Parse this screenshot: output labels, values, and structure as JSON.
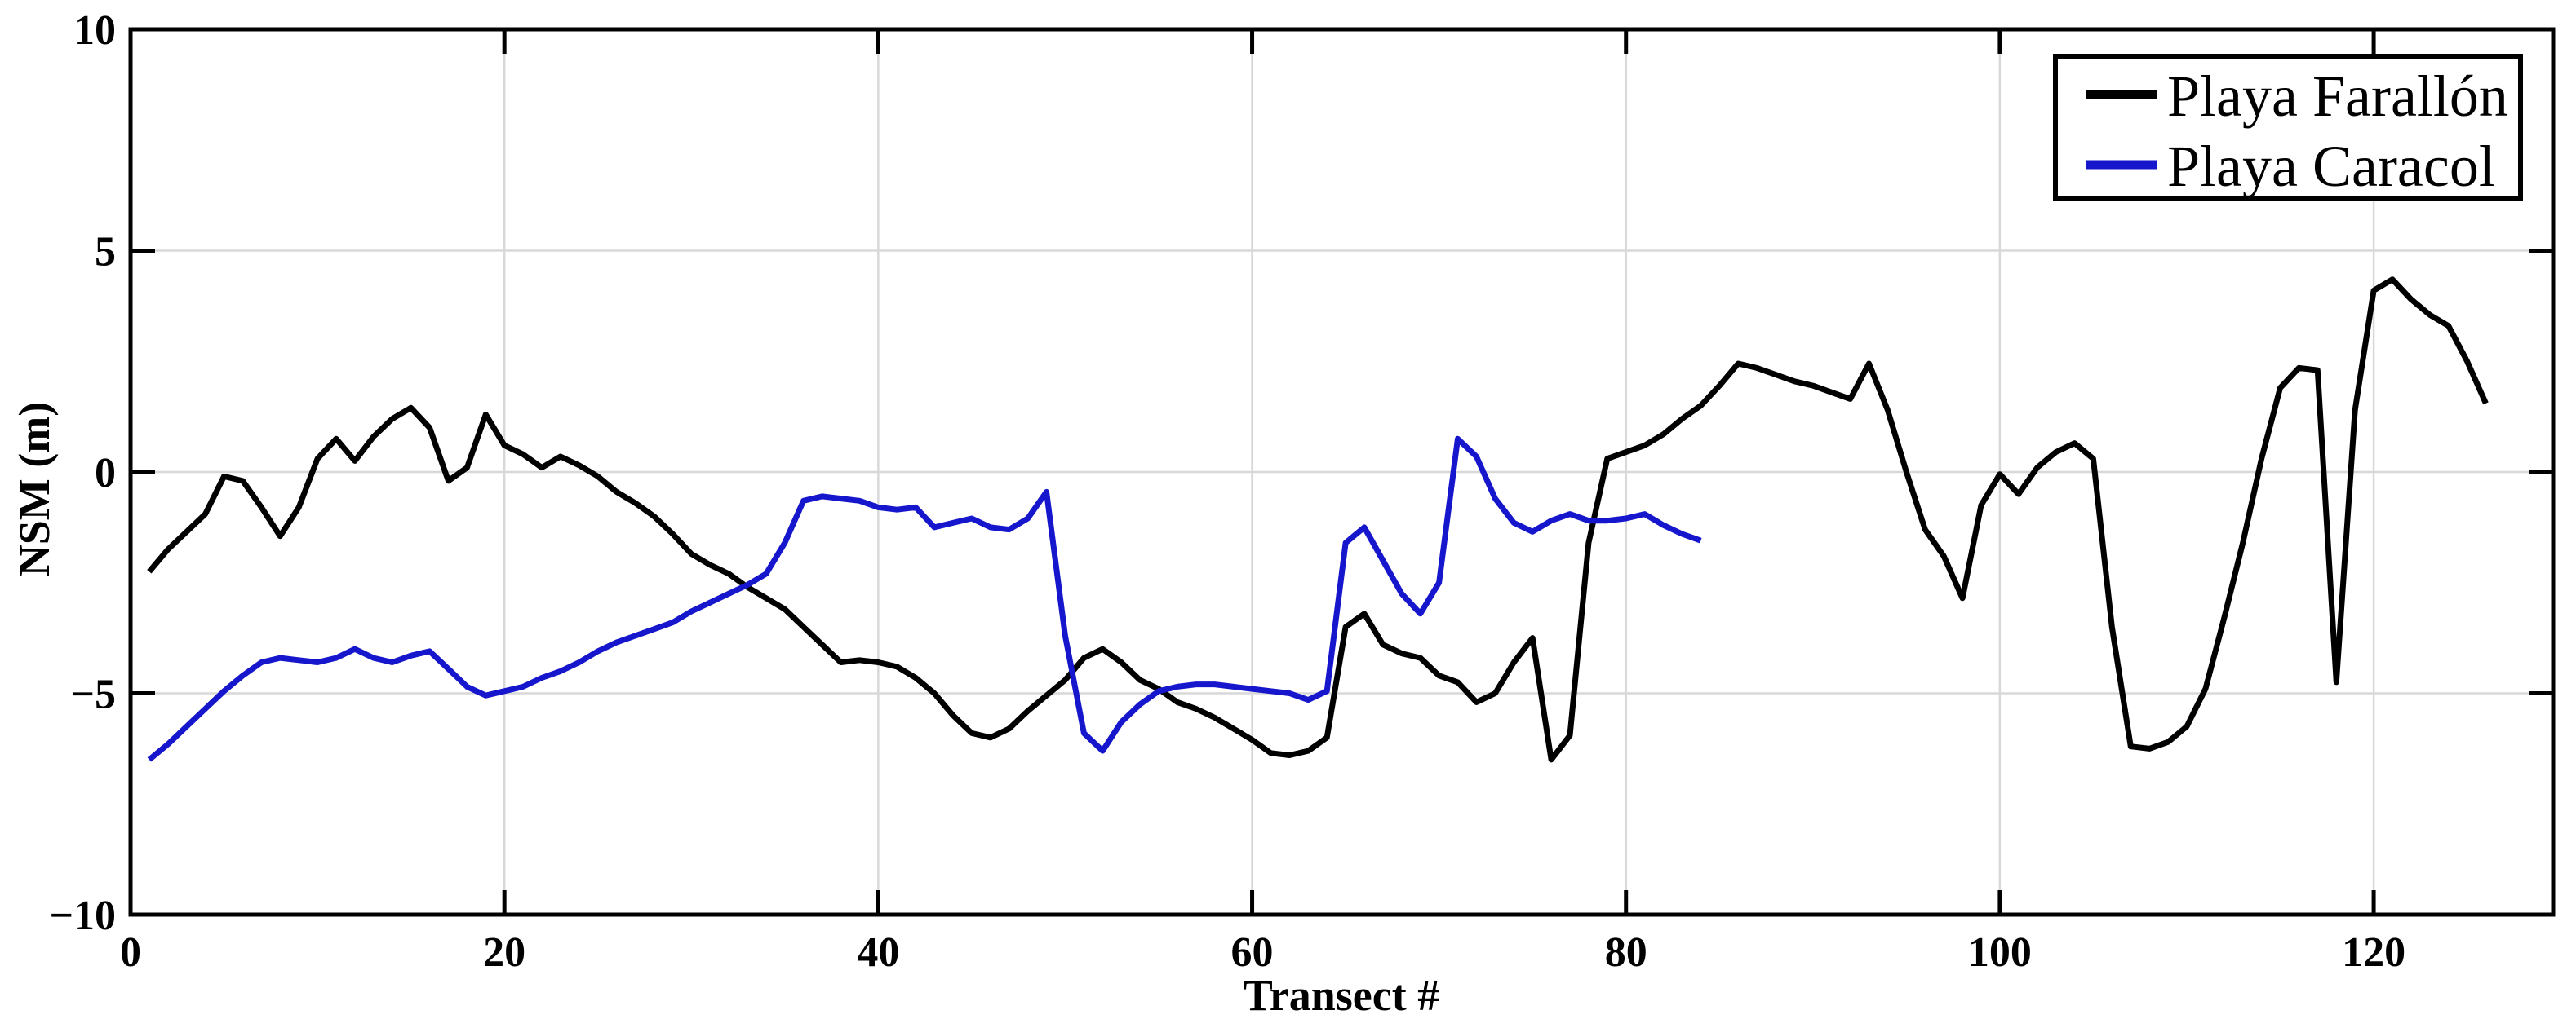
{
  "figure": {
    "kind": "matlab-style line figure",
    "background": "#ffffff",
    "axis_color": "#000000",
    "grid_color": "#d8d8d8"
  },
  "chart_data": {
    "type": "line",
    "title": "",
    "xlabel": "Transect #",
    "ylabel": "NSM (m)",
    "xlim": [
      0,
      129.6
    ],
    "ylim": [
      -10,
      10
    ],
    "x_ticks": [
      0,
      20,
      40,
      60,
      80,
      100,
      120
    ],
    "y_ticks": [
      -10,
      -5,
      0,
      5,
      10
    ],
    "x_gridlines": [
      20,
      40,
      60,
      80,
      100,
      120
    ],
    "y_gridlines": [
      -5,
      0,
      5
    ],
    "grid": true,
    "legend_position": "top-right",
    "x_description": "Transect number; points sampled at every integer transect starting at 1",
    "series": [
      {
        "name": "Playa Farallón",
        "color": "#000000",
        "x_start": 1,
        "x_step": 1,
        "values": [
          -2.25,
          -1.75,
          -1.35,
          -0.95,
          -0.1,
          -0.2,
          -0.8,
          -1.45,
          -0.8,
          0.3,
          0.75,
          0.25,
          0.8,
          1.2,
          1.45,
          1.0,
          -0.2,
          0.1,
          1.3,
          0.6,
          0.4,
          0.1,
          0.35,
          0.15,
          -0.1,
          -0.45,
          -0.7,
          -1.0,
          -1.4,
          -1.85,
          -2.1,
          -2.3,
          -2.6,
          -2.85,
          -3.1,
          -3.5,
          -3.9,
          -4.3,
          -4.25,
          -4.3,
          -4.4,
          -4.65,
          -5.0,
          -5.5,
          -5.9,
          -6.0,
          -5.8,
          -5.4,
          -5.05,
          -4.7,
          -4.2,
          -4.0,
          -4.3,
          -4.7,
          -4.9,
          -5.2,
          -5.35,
          -5.55,
          -5.8,
          -6.05,
          -6.35,
          -6.4,
          -6.3,
          -6.0,
          -3.5,
          -3.2,
          -3.9,
          -4.1,
          -4.2,
          -4.6,
          -4.75,
          -5.2,
          -5.0,
          -4.3,
          -3.75,
          -6.5,
          -5.95,
          -1.6,
          0.3,
          0.45,
          0.6,
          0.85,
          1.2,
          1.5,
          1.95,
          2.45,
          2.35,
          2.2,
          2.05,
          1.95,
          1.8,
          1.65,
          2.45,
          1.4,
          0.0,
          -1.3,
          -1.9,
          -2.85,
          -0.75,
          -0.05,
          -0.5,
          0.1,
          0.45,
          0.65,
          0.3,
          -3.5,
          -6.2,
          -6.25,
          -6.1,
          -5.75,
          -4.9,
          -3.3,
          -1.6,
          0.3,
          1.9,
          2.35,
          2.3,
          -4.75,
          1.4,
          4.1,
          4.35,
          3.9,
          3.55,
          3.3,
          2.5,
          1.55
        ]
      },
      {
        "name": "Playa Caracol",
        "color": "#1616cd",
        "x_start": 1,
        "x_step": 1,
        "values": [
          -6.5,
          -6.15,
          -5.75,
          -5.35,
          -4.95,
          -4.6,
          -4.3,
          -4.2,
          -4.25,
          -4.3,
          -4.2,
          -4.0,
          -4.2,
          -4.3,
          -4.15,
          -4.05,
          -4.45,
          -4.85,
          -5.05,
          -4.95,
          -4.85,
          -4.65,
          -4.5,
          -4.3,
          -4.05,
          -3.85,
          -3.7,
          -3.55,
          -3.4,
          -3.15,
          -2.95,
          -2.75,
          -2.55,
          -2.3,
          -1.6,
          -0.65,
          -0.55,
          -0.6,
          -0.65,
          -0.8,
          -0.85,
          -0.8,
          -1.25,
          -1.15,
          -1.05,
          -1.25,
          -1.3,
          -1.05,
          -0.45,
          -3.7,
          -5.9,
          -6.3,
          -5.65,
          -5.25,
          -4.95,
          -4.85,
          -4.8,
          -4.8,
          -4.85,
          -4.9,
          -4.95,
          -5.0,
          -5.15,
          -4.95,
          -1.6,
          -1.25,
          -2.0,
          -2.75,
          -3.2,
          -2.5,
          0.75,
          0.35,
          -0.6,
          -1.15,
          -1.35,
          -1.1,
          -0.95,
          -1.1,
          -1.1,
          -1.05,
          -0.95,
          -1.2,
          -1.4,
          -1.55
        ]
      }
    ]
  },
  "legend": {
    "entries": [
      {
        "label": "Playa Farallón",
        "color": "#000000"
      },
      {
        "label": "Playa Caracol",
        "color": "#1616cd"
      }
    ]
  }
}
